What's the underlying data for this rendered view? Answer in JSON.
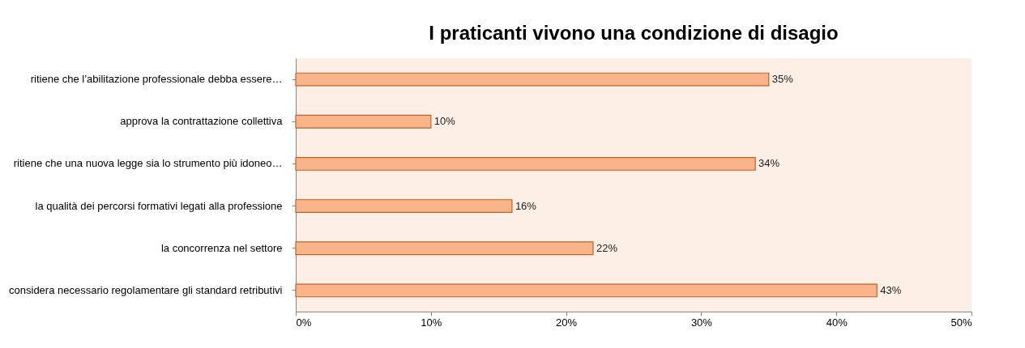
{
  "chart_data": {
    "type": "bar",
    "orientation": "horizontal",
    "title": "I praticanti vivono una condizione di disagio",
    "categories": [
      "ritiene che l’abilitazione professionale debba essere…",
      "approva la contrattazione collettiva",
      "ritiene che una nuova legge sia lo strumento più idoneo…",
      "la qualità dei percorsi formativi legati alla professione",
      "la concorrenza nel settore",
      "considera necessario regolamentare gli standard retributivi"
    ],
    "values": [
      35,
      10,
      34,
      16,
      22,
      43
    ],
    "value_labels": [
      "35%",
      "10%",
      "34%",
      "16%",
      "22%",
      "43%"
    ],
    "color": "#f9b48a",
    "xlim": [
      0,
      50
    ],
    "xticks": [
      {
        "value": 0,
        "label": "0%"
      },
      {
        "value": 10,
        "label": "10%"
      },
      {
        "value": 20,
        "label": "20%"
      },
      {
        "value": 30,
        "label": "30%"
      },
      {
        "value": 40,
        "label": "40%"
      },
      {
        "value": 50,
        "label": "50%"
      }
    ],
    "grid": false
  }
}
